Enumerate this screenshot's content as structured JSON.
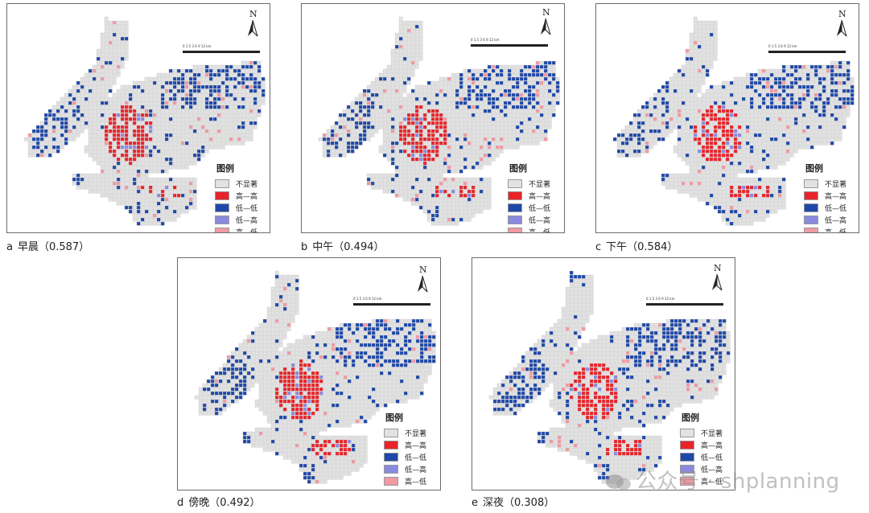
{
  "legend": {
    "title": "图例",
    "items": [
      {
        "label": "不显著",
        "color": "#e2e2e2"
      },
      {
        "label": "高—高",
        "color": "#e8242a"
      },
      {
        "label": "低—低",
        "color": "#1f49a8"
      },
      {
        "label": "低—高",
        "color": "#8a8ae0"
      },
      {
        "label": "高—低",
        "color": "#f09aa2"
      }
    ]
  },
  "north_label": "N",
  "scale_ticks": "0  1.5  3      6      9     12 km",
  "panels": [
    {
      "letter": "a",
      "caption": "早晨（0.587）",
      "moran_i": 0.587
    },
    {
      "letter": "b",
      "caption": "中午（0.494）",
      "moran_i": 0.494
    },
    {
      "letter": "c",
      "caption": "下午（0.584）",
      "moran_i": 0.584
    },
    {
      "letter": "d",
      "caption": "傍晚（0.492）",
      "moran_i": 0.492
    },
    {
      "letter": "e",
      "caption": "深夜（0.308）",
      "moran_i": 0.308
    }
  ],
  "watermark": "公众号 · shplanning"
}
